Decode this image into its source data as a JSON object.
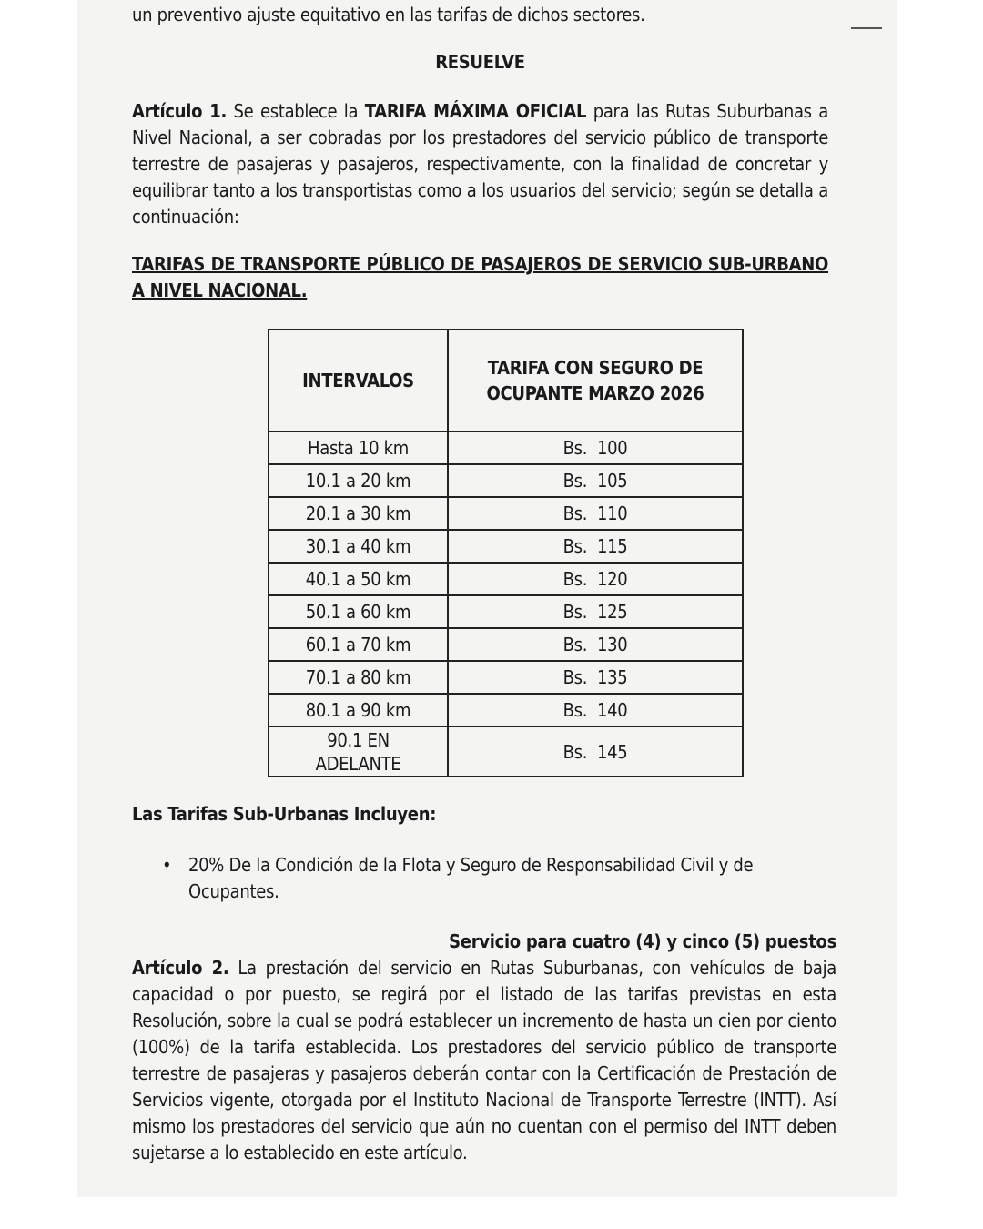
{
  "intro_tail": "un preventivo ajuste equitativo en las tarifas de dichos sectores.",
  "heading": "RESUELVE",
  "article1": {
    "label": "Artículo 1.",
    "text_a": " Se establece la ",
    "bold": "TARIFA MÁXIMA OFICIAL",
    "text_b": " para las Rutas Suburbanas a Nivel Nacional, a ser cobradas por los prestadores del servicio público de transporte terrestre de pasajeras y pasajeros, respectivamente, con la finalidad de concretar y equilibrar tanto a los transportistas como a los usuarios del servicio; según se detalla a continuación:"
  },
  "table_title": "TARIFAS DE TRANSPORTE PÚBLICO DE PASAJEROS DE SERVICIO SUB-URBANO A NIVEL NACIONAL.",
  "table": {
    "headers": [
      "INTERVALOS",
      "TARIFA CON SEGURO DE OCUPANTE MARZO 2026"
    ],
    "rows": [
      [
        "Hasta 10 km",
        "Bs.  100"
      ],
      [
        "10.1 a 20 km",
        "Bs.  105"
      ],
      [
        "20.1 a 30 km",
        "Bs.  110"
      ],
      [
        "30.1 a 40 km",
        "Bs.  115"
      ],
      [
        "40.1 a 50 km",
        "Bs.  120"
      ],
      [
        "50.1 a 60 km",
        "Bs.  125"
      ],
      [
        "60.1 a 70 km",
        "Bs.  130"
      ],
      [
        "70.1 a 80 km",
        "Bs.  135"
      ],
      [
        "80.1 a 90 km",
        "Bs.  140"
      ],
      [
        "90.1 EN ADELANTE",
        "Bs.  145"
      ]
    ]
  },
  "includes_title": "Las Tarifas Sub-Urbanas Incluyen:",
  "includes_items": [
    "20% De la Condición de la Flota y Seguro de Responsabilidad Civil y de Ocupantes."
  ],
  "service_heading": "Servicio para cuatro (4) y cinco (5) puestos",
  "article2": {
    "label": "Artículo 2.",
    "text": " La prestación del servicio en Rutas Suburbanas, con vehículos de baja capacidad o por puesto, se regirá por el listado de las tarifas previstas en esta Resolución, sobre la cual se podrá establecer un incremento de hasta un cien por ciento (100%) de la tarifa establecida. Los prestadores del servicio público de transporte terrestre de pasajeras y pasajeros deberán contar con la Certificación de Prestación de Servicios vigente, otorgada por el Instituto Nacional de Transporte Terrestre (INTT). Así mismo los prestadores del servicio que aún no cuentan con el permiso del INTT deben sujetarse a lo establecido en este artículo."
  }
}
